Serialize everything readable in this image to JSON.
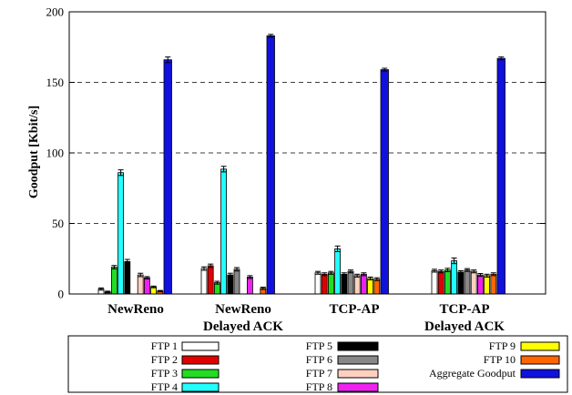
{
  "chart_data": {
    "type": "bar",
    "ylabel": "Goodput [Kbit/s]",
    "ylim": [
      0,
      200
    ],
    "yticks": [
      0,
      50,
      100,
      150,
      200
    ],
    "grid": "dashed horizontal",
    "legend_position": "bottom",
    "categories": [
      "NewReno",
      "NewReno Delayed ACK",
      "TCP-AP",
      "TCP-AP Delayed ACK"
    ],
    "category_lines": [
      [
        "NewReno"
      ],
      [
        "NewReno",
        "Delayed ACK"
      ],
      [
        "TCP-AP"
      ],
      [
        "TCP-AP",
        "Delayed ACK"
      ]
    ],
    "series": [
      {
        "name": "FTP 1",
        "color": "#ffffff",
        "values": [
          3.5,
          18,
          15,
          16.5
        ],
        "errors": [
          0.8,
          1.2,
          1.0,
          1.0
        ]
      },
      {
        "name": "FTP 2",
        "color": "#e00000",
        "values": [
          1.5,
          20,
          14,
          16
        ],
        "errors": [
          0.5,
          1.2,
          1.0,
          1.0
        ]
      },
      {
        "name": "FTP 3",
        "color": "#22dd22",
        "values": [
          19,
          8,
          15,
          17
        ],
        "errors": [
          1.2,
          1.0,
          1.0,
          1.2
        ]
      },
      {
        "name": "FTP 4",
        "color": "#22ffff",
        "values": [
          86,
          88.5,
          32,
          23.5
        ],
        "errors": [
          2.0,
          2.0,
          2.0,
          2.0
        ]
      },
      {
        "name": "FTP 5",
        "color": "#000000",
        "values": [
          23,
          13.5,
          14,
          15.5
        ],
        "errors": [
          1.5,
          1.2,
          1.0,
          1.0
        ]
      },
      {
        "name": "FTP 6",
        "color": "#888888",
        "values": [
          0,
          17.5,
          16,
          17
        ],
        "errors": [
          0,
          1.2,
          1.0,
          1.0
        ]
      },
      {
        "name": "FTP 7",
        "color": "#ffd0c0",
        "values": [
          13.5,
          0,
          13,
          16
        ],
        "errors": [
          1.2,
          0,
          1.0,
          1.0
        ]
      },
      {
        "name": "FTP 8",
        "color": "#ee22ee",
        "values": [
          11.5,
          12,
          14,
          13.5
        ],
        "errors": [
          0.8,
          1.0,
          1.0,
          1.0
        ]
      },
      {
        "name": "FTP 9",
        "color": "#ffff00",
        "values": [
          5,
          0,
          11,
          13
        ],
        "errors": [
          0.6,
          0,
          1.0,
          1.0
        ]
      },
      {
        "name": "FTP 10",
        "color": "#ff6600",
        "values": [
          2,
          4,
          10.5,
          14
        ],
        "errors": [
          0.5,
          0.8,
          1.0,
          1.0
        ]
      },
      {
        "name": "Aggregate Goodput",
        "color": "#1111dd",
        "values": [
          166,
          183,
          159,
          167
        ],
        "errors": [
          2.0,
          1.0,
          1.0,
          1.0
        ]
      }
    ],
    "legend_order": [
      "FTP 1",
      "FTP 2",
      "FTP 3",
      "FTP 4",
      "FTP 5",
      "FTP 6",
      "FTP 7",
      "FTP 8",
      "FTP 9",
      "FTP 10",
      "Aggregate Goodput"
    ]
  }
}
